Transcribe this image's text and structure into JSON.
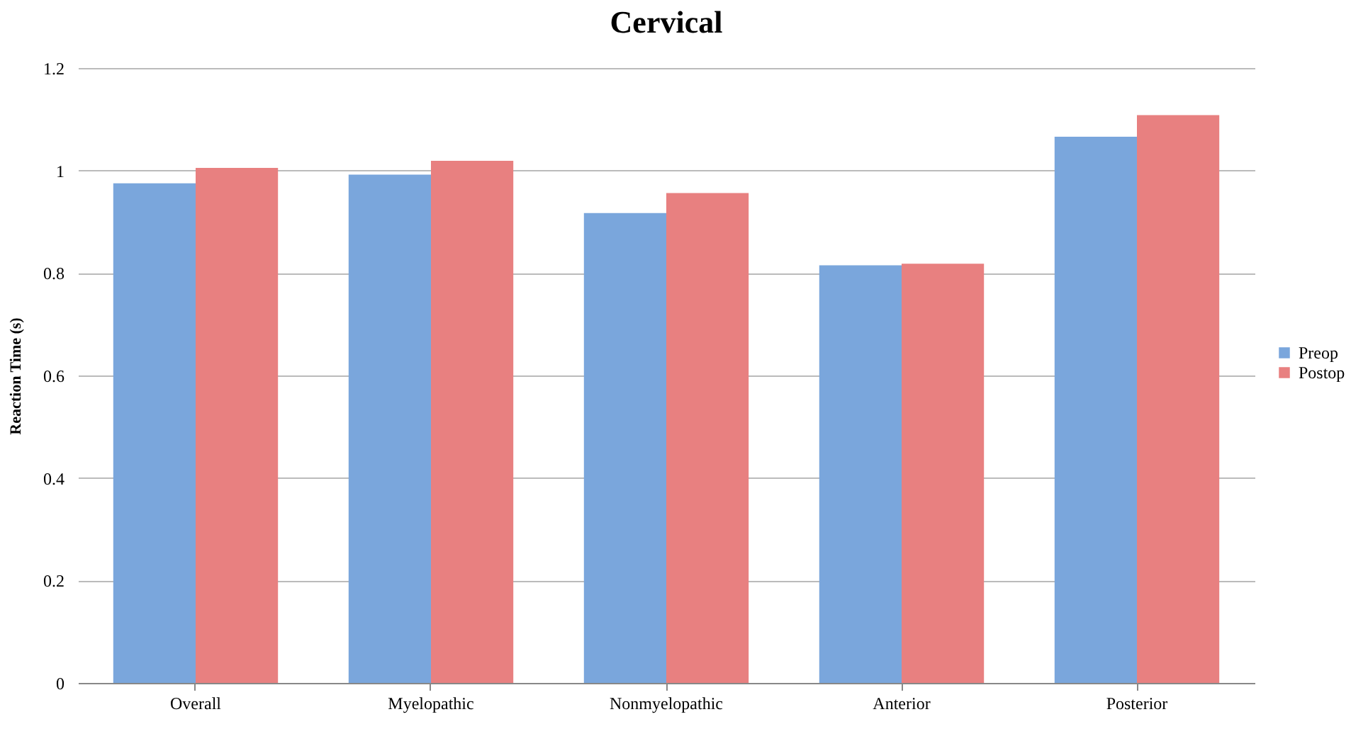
{
  "chart_data": {
    "type": "bar",
    "title": "Cervical",
    "ylabel": "Reaction Time (s)",
    "categories": [
      "Overall",
      "Myelopathic",
      "Nonmyelopathic",
      "Anterior",
      "Posterior"
    ],
    "series": [
      {
        "name": "Preop",
        "color": "#7aa6dc",
        "values": [
          0.975,
          0.992,
          0.917,
          0.815,
          1.066
        ]
      },
      {
        "name": "Postop",
        "color": "#e88080",
        "values": [
          1.005,
          1.019,
          0.956,
          0.818,
          1.108
        ]
      }
    ],
    "ylim": [
      0,
      1.2
    ],
    "yticks": [
      0,
      0.2,
      0.4,
      0.6,
      0.8,
      1,
      1.2
    ],
    "grid": "y",
    "legend": "right"
  }
}
